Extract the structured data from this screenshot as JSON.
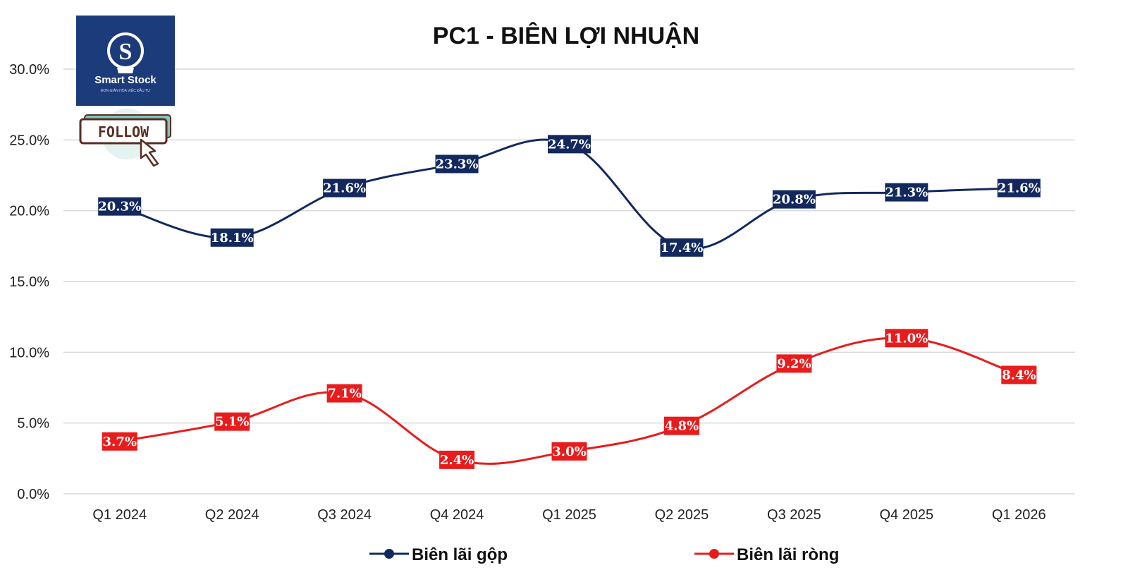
{
  "logo": {
    "name": "Smart Stock",
    "tagline": "ĐƠN GIẢN HÓA VIỆC ĐẦU TƯ",
    "follow_label": "FOLLOW"
  },
  "colors": {
    "gross": "#13295e",
    "net": "#e81c1c",
    "grid": "#d9d9d9"
  },
  "chart_data": {
    "type": "line",
    "title": "PC1 - BIÊN LỢI NHUẬN",
    "categories": [
      "Q1 2024",
      "Q2 2024",
      "Q3 2024",
      "Q4 2024",
      "Q1 2025",
      "Q2 2025",
      "Q3 2025",
      "Q4 2025",
      "Q1 2026"
    ],
    "series": [
      {
        "name": "Biên lãi gộp",
        "color": "#13295e",
        "values": [
          20.3,
          18.1,
          21.6,
          23.3,
          24.7,
          17.4,
          20.8,
          21.3,
          21.6
        ],
        "labels": [
          "20.3%",
          "18.1%",
          "21.6%",
          "23.3%",
          "24.7%",
          "17.4%",
          "20.8%",
          "21.3%",
          "21.6%"
        ]
      },
      {
        "name": "Biên lãi ròng",
        "color": "#e81c1c",
        "values": [
          3.7,
          5.1,
          7.1,
          2.4,
          3.0,
          4.8,
          9.2,
          11.0,
          8.4
        ],
        "labels": [
          "3.7%",
          "5.1%",
          "7.1%",
          "2.4%",
          "3.0%",
          "4.8%",
          "9.2%",
          "11.0%",
          "8.4%"
        ]
      }
    ],
    "y_ticks": [
      "0.0%",
      "5.0%",
      "10.0%",
      "15.0%",
      "20.0%",
      "25.0%",
      "30.0%"
    ],
    "ylim": [
      0,
      30
    ],
    "grid": true,
    "legend_position": "bottom"
  }
}
